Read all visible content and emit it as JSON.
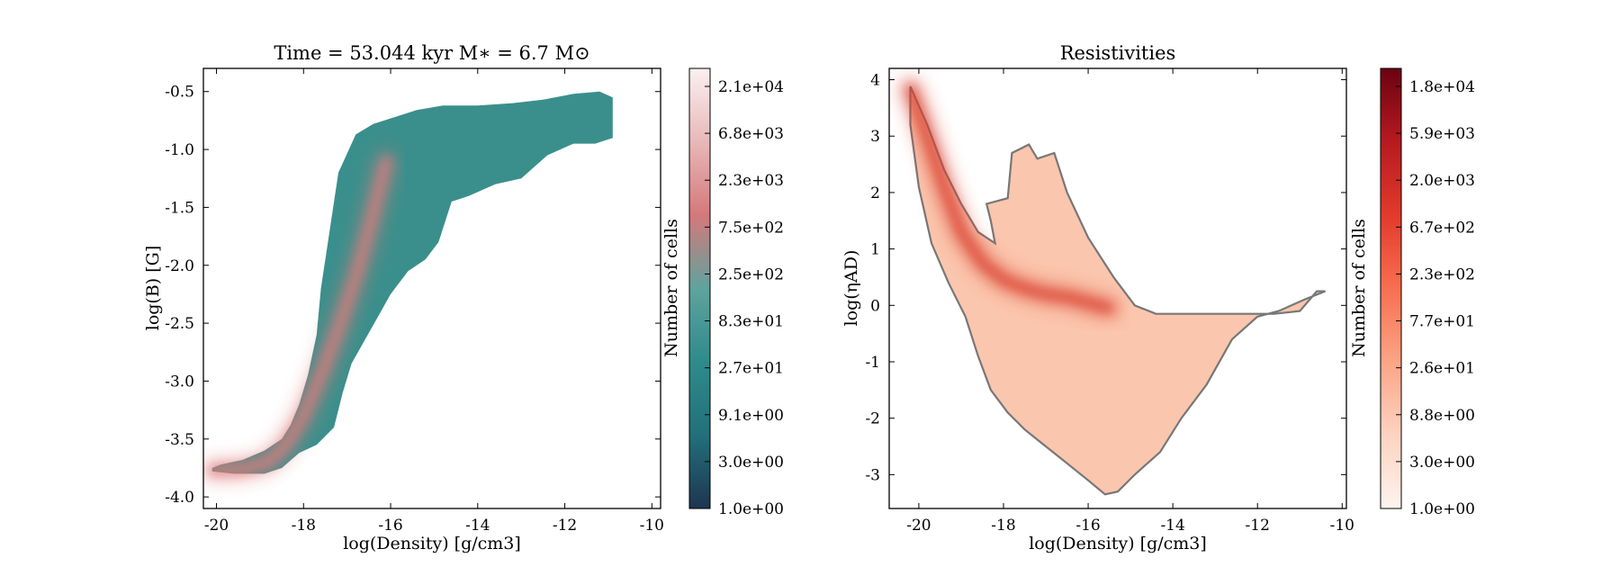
{
  "chart_data": [
    {
      "type": "heatmap",
      "title": "Time = 53.044 kyr    M$_*$ = 6.7 M$_\\odot$",
      "title_display": "Time = 53.044 kyr    M∗ = 6.7 M⊙",
      "xlabel": "log(Density) [g/cm3]",
      "ylabel": "log(B) [G]",
      "xlim": [
        -20.3,
        -9.8
      ],
      "ylim": [
        -4.1,
        -0.3
      ],
      "x_ticks": [
        -20,
        -18,
        -16,
        -14,
        -12,
        -10
      ],
      "y_ticks": [
        -4.0,
        -3.5,
        -3.0,
        -2.5,
        -2.0,
        -1.5,
        -1.0,
        -0.5
      ],
      "x_tick_labels": [
        "-20",
        "-18",
        "-16",
        "-14",
        "-12",
        "-10"
      ],
      "y_tick_labels": [
        "-4.0",
        "-3.5",
        "-3.0",
        "-2.5",
        "-2.0",
        "-1.5",
        "-1.0",
        "-0.5"
      ],
      "colorbar": {
        "label": "Number of cells",
        "scale": "log",
        "tick_labels": [
          "1.0e+00",
          "3.0e+00",
          "9.1e+00",
          "2.7e+01",
          "8.3e+01",
          "2.5e+02",
          "7.5e+02",
          "2.3e+03",
          "6.8e+03",
          "2.1e+04"
        ],
        "colors": [
          "#1e3550",
          "#22707a",
          "#2e8b8b",
          "#5fa39d",
          "#d5787a",
          "#e8b8b8",
          "#fbf0f0"
        ]
      },
      "region_outline": [
        [
          -20.1,
          -3.78
        ],
        [
          -19.6,
          -3.8
        ],
        [
          -18.9,
          -3.8
        ],
        [
          -18.5,
          -3.75
        ],
        [
          -18.1,
          -3.62
        ],
        [
          -17.7,
          -3.55
        ],
        [
          -17.3,
          -3.4
        ],
        [
          -17.1,
          -3.1
        ],
        [
          -16.9,
          -2.85
        ],
        [
          -16.6,
          -2.65
        ],
        [
          -16.3,
          -2.45
        ],
        [
          -16.0,
          -2.25
        ],
        [
          -15.6,
          -2.05
        ],
        [
          -15.2,
          -1.95
        ],
        [
          -14.9,
          -1.8
        ],
        [
          -14.6,
          -1.45
        ],
        [
          -14.2,
          -1.4
        ],
        [
          -13.6,
          -1.3
        ],
        [
          -13.0,
          -1.25
        ],
        [
          -12.4,
          -1.05
        ],
        [
          -11.8,
          -0.95
        ],
        [
          -11.3,
          -0.95
        ],
        [
          -10.9,
          -0.9
        ],
        [
          -10.9,
          -0.55
        ],
        [
          -11.2,
          -0.5
        ],
        [
          -11.8,
          -0.52
        ],
        [
          -12.5,
          -0.57
        ],
        [
          -13.2,
          -0.6
        ],
        [
          -14.0,
          -0.62
        ],
        [
          -14.8,
          -0.62
        ],
        [
          -15.4,
          -0.66
        ],
        [
          -15.9,
          -0.72
        ],
        [
          -16.4,
          -0.78
        ],
        [
          -16.8,
          -0.87
        ],
        [
          -17.2,
          -1.2
        ],
        [
          -17.4,
          -1.7
        ],
        [
          -17.6,
          -2.2
        ],
        [
          -17.7,
          -2.6
        ],
        [
          -17.9,
          -2.95
        ],
        [
          -18.1,
          -3.2
        ],
        [
          -18.3,
          -3.38
        ],
        [
          -18.5,
          -3.5
        ],
        [
          -18.9,
          -3.6
        ],
        [
          -19.4,
          -3.68
        ],
        [
          -19.9,
          -3.72
        ],
        [
          -20.1,
          -3.75
        ]
      ],
      "ridge_line": [
        [
          -20.1,
          -3.77
        ],
        [
          -19.4,
          -3.76
        ],
        [
          -18.8,
          -3.7
        ],
        [
          -18.4,
          -3.55
        ],
        [
          -18.0,
          -3.3
        ],
        [
          -17.6,
          -2.95
        ],
        [
          -17.2,
          -2.55
        ],
        [
          -16.8,
          -2.1
        ],
        [
          -16.5,
          -1.7
        ],
        [
          -16.3,
          -1.4
        ],
        [
          -16.1,
          -1.1
        ]
      ]
    },
    {
      "type": "heatmap",
      "title": "Resistivities",
      "title_display": "Resistivities",
      "xlabel": "log(Density) [g/cm3]",
      "ylabel": "log(ηAD)",
      "xlim": [
        -20.7,
        -9.9
      ],
      "ylim": [
        -3.6,
        4.2
      ],
      "x_ticks": [
        -20,
        -18,
        -16,
        -14,
        -12,
        -10
      ],
      "y_ticks": [
        -3,
        -2,
        -1,
        0,
        1,
        2,
        3,
        4
      ],
      "x_tick_labels": [
        "-20",
        "-18",
        "-16",
        "-14",
        "-12",
        "-10"
      ],
      "y_tick_labels": [
        "-3",
        "-2",
        "-1",
        "0",
        "1",
        "2",
        "3",
        "4"
      ],
      "colorbar": {
        "label": "Number of cells",
        "scale": "log",
        "tick_labels": [
          "1.0e+00",
          "3.0e+00",
          "8.8e+00",
          "2.6e+01",
          "7.7e+01",
          "2.3e+02",
          "6.7e+02",
          "2.0e+03",
          "5.9e+03",
          "1.8e+04"
        ],
        "colors": [
          "#fff3ee",
          "#fdd3c1",
          "#fca486",
          "#f86f50",
          "#e23a2c",
          "#b71a1f",
          "#6b0211"
        ]
      },
      "region_outline": [
        [
          -20.2,
          3.88
        ],
        [
          -19.8,
          3.2
        ],
        [
          -19.4,
          2.4
        ],
        [
          -19.0,
          1.8
        ],
        [
          -18.6,
          1.3
        ],
        [
          -18.2,
          1.1
        ],
        [
          -18.3,
          1.5
        ],
        [
          -18.4,
          1.8
        ],
        [
          -17.9,
          1.9
        ],
        [
          -17.8,
          2.7
        ],
        [
          -17.4,
          2.85
        ],
        [
          -17.2,
          2.6
        ],
        [
          -16.8,
          2.7
        ],
        [
          -16.5,
          2.0
        ],
        [
          -16.0,
          1.2
        ],
        [
          -15.4,
          0.5
        ],
        [
          -14.9,
          0.0
        ],
        [
          -14.4,
          -0.15
        ],
        [
          -13.4,
          -0.15
        ],
        [
          -12.4,
          -0.15
        ],
        [
          -11.6,
          -0.15
        ],
        [
          -11.0,
          -0.1
        ],
        [
          -10.6,
          0.25
        ],
        [
          -10.4,
          0.25
        ],
        [
          -10.9,
          0.1
        ],
        [
          -11.5,
          -0.1
        ],
        [
          -12.0,
          -0.2
        ],
        [
          -12.6,
          -0.6
        ],
        [
          -13.2,
          -1.4
        ],
        [
          -13.8,
          -2.0
        ],
        [
          -14.3,
          -2.6
        ],
        [
          -14.9,
          -3.0
        ],
        [
          -15.3,
          -3.3
        ],
        [
          -15.6,
          -3.35
        ],
        [
          -16.0,
          -3.1
        ],
        [
          -16.5,
          -2.8
        ],
        [
          -17.0,
          -2.5
        ],
        [
          -17.5,
          -2.2
        ],
        [
          -17.9,
          -1.9
        ],
        [
          -18.3,
          -1.5
        ],
        [
          -18.6,
          -0.9
        ],
        [
          -18.9,
          -0.2
        ],
        [
          -19.3,
          0.4
        ],
        [
          -19.7,
          1.1
        ],
        [
          -20.0,
          2.1
        ],
        [
          -20.2,
          3.2
        ]
      ],
      "ridge_line": [
        [
          -20.2,
          3.85
        ],
        [
          -19.8,
          3.0
        ],
        [
          -19.4,
          2.1
        ],
        [
          -19.0,
          1.3
        ],
        [
          -18.5,
          0.75
        ],
        [
          -18.0,
          0.45
        ],
        [
          -17.5,
          0.3
        ],
        [
          -17.0,
          0.2
        ],
        [
          -16.5,
          0.15
        ],
        [
          -16.0,
          0.05
        ],
        [
          -15.5,
          -0.05
        ]
      ]
    }
  ]
}
